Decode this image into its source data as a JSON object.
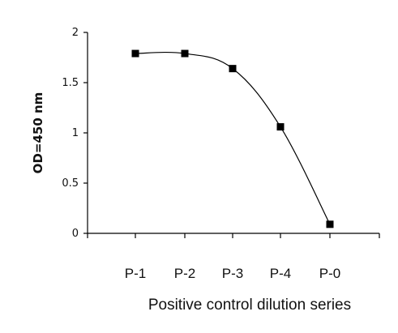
{
  "chart_data": {
    "type": "line",
    "categories": [
      "P-1",
      "P-2",
      "P-3",
      "P-4",
      "P-0"
    ],
    "series": [
      {
        "values": [
          1.79,
          1.79,
          1.64,
          1.06,
          0.09
        ]
      }
    ],
    "xlabel": "Positive control dilution series",
    "ylabel": "OD=450 nm",
    "ylim": [
      0,
      2
    ],
    "yticks": [
      0,
      0.5,
      1,
      1.5,
      2
    ],
    "ytick_labels": [
      "0",
      "0.5",
      "1",
      "1.5",
      "2"
    ],
    "grid": false,
    "legend": "none",
    "line_style": "smooth",
    "marker": "square",
    "colors": {
      "line": "#000000",
      "marker": "#000000",
      "axis": "#000000"
    }
  }
}
